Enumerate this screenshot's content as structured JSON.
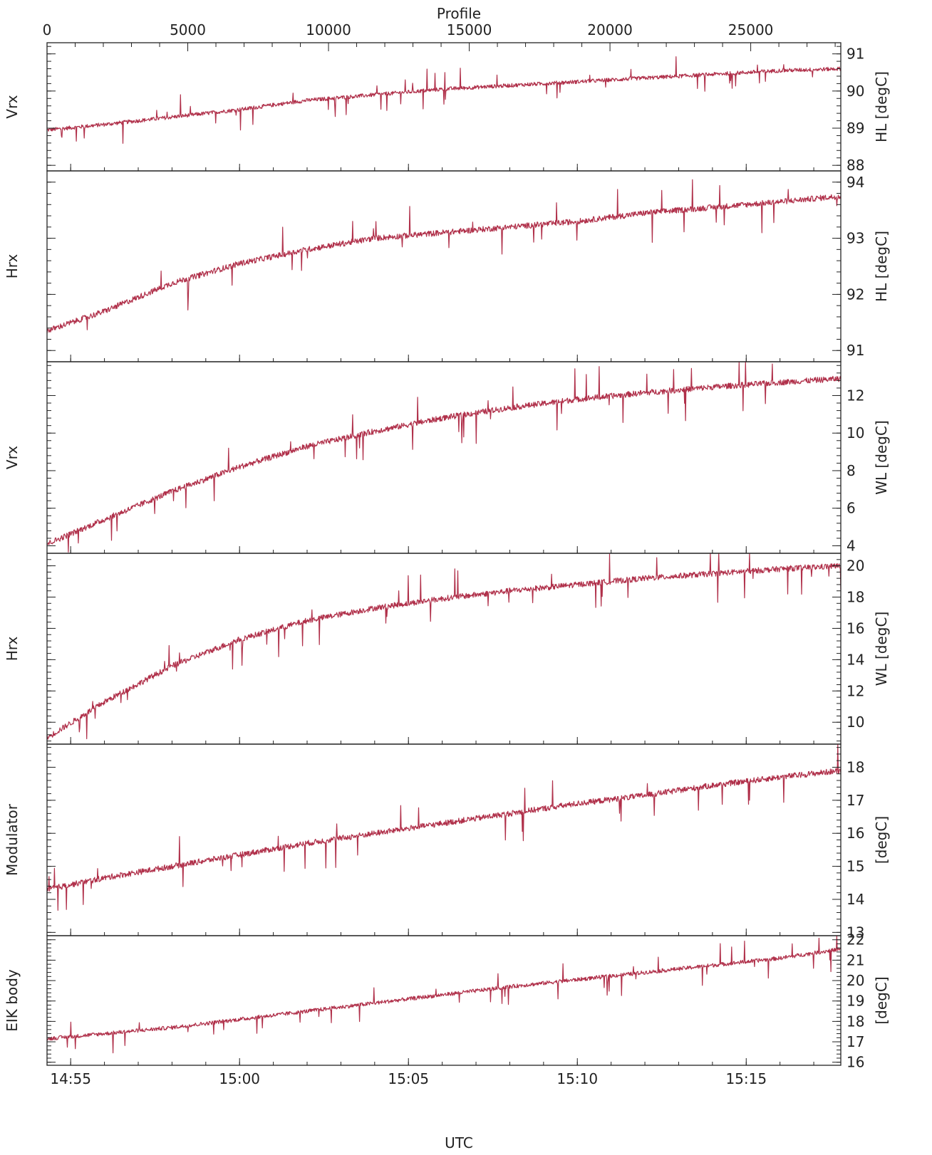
{
  "chart_data": {
    "type": "line",
    "colors": {
      "series": "#b0304a",
      "axes": "#222222"
    },
    "top_axis": {
      "label": "Profile",
      "ticks": [
        0,
        5000,
        10000,
        15000,
        20000,
        25000
      ],
      "range": [
        0,
        28200
      ]
    },
    "bottom_axis": {
      "label": "UTC",
      "tick_labels": [
        "14:55",
        "15:00",
        "15:05",
        "15:10",
        "15:15"
      ],
      "tick_minutes": [
        895,
        900,
        905,
        910,
        915
      ],
      "range_minutes": [
        894.3,
        917.8
      ]
    },
    "panels": [
      {
        "left_label": "Vrx",
        "right_label": "HL  [degC]",
        "ylim": [
          87.85,
          91.3
        ],
        "yticks": [
          88,
          89,
          90,
          91
        ],
        "series": {
          "x_minutes": [
            894.3,
            896,
            898,
            900,
            902,
            904,
            906,
            908,
            910,
            912,
            914,
            916,
            917.8
          ],
          "values": [
            88.95,
            89.1,
            89.3,
            89.5,
            89.75,
            89.9,
            90.05,
            90.15,
            90.25,
            90.35,
            90.45,
            90.55,
            90.6
          ]
        }
      },
      {
        "left_label": "Hrx",
        "right_label": "HL  [degC]",
        "ylim": [
          90.8,
          94.2
        ],
        "yticks": [
          91,
          92,
          93,
          94
        ],
        "series": {
          "x_minutes": [
            894.3,
            896,
            898,
            900,
            902,
            904,
            906,
            908,
            910,
            912,
            914,
            916,
            917.8
          ],
          "values": [
            91.35,
            91.7,
            92.2,
            92.55,
            92.8,
            93.0,
            93.1,
            93.2,
            93.3,
            93.45,
            93.55,
            93.65,
            93.75
          ]
        }
      },
      {
        "left_label": "Vrx",
        "right_label": "WL  [degC]",
        "ylim": [
          3.6,
          13.8
        ],
        "yticks": [
          4,
          6,
          8,
          10,
          12
        ],
        "series": {
          "x_minutes": [
            894.3,
            896,
            898,
            900,
            902,
            904,
            906,
            908,
            910,
            912,
            914,
            916,
            917.8
          ],
          "values": [
            4.1,
            5.4,
            6.9,
            8.2,
            9.3,
            10.1,
            10.8,
            11.35,
            11.8,
            12.15,
            12.45,
            12.7,
            12.9
          ]
        }
      },
      {
        "left_label": "Hrx",
        "right_label": "WL  [degC]",
        "ylim": [
          8.6,
          20.8
        ],
        "yticks": [
          10,
          12,
          14,
          16,
          18,
          20
        ],
        "series": {
          "x_minutes": [
            894.3,
            896,
            898,
            900,
            902,
            904,
            906,
            908,
            910,
            912,
            914,
            916,
            917.8
          ],
          "values": [
            9.0,
            11.3,
            13.6,
            15.3,
            16.5,
            17.3,
            17.9,
            18.4,
            18.8,
            19.2,
            19.5,
            19.8,
            20.0
          ]
        }
      },
      {
        "left_label": "Modulator",
        "right_label": "[degC]",
        "ylim": [
          12.9,
          18.7
        ],
        "yticks": [
          13,
          14,
          15,
          16,
          17,
          18
        ],
        "series": {
          "x_minutes": [
            894.3,
            896,
            898,
            900,
            902,
            904,
            906,
            908,
            910,
            912,
            914,
            916,
            917.8
          ],
          "values": [
            14.3,
            14.65,
            15.0,
            15.35,
            15.7,
            16.0,
            16.3,
            16.6,
            16.9,
            17.15,
            17.45,
            17.7,
            17.9
          ]
        }
      },
      {
        "left_label": "EIK  body",
        "right_label": "[degC]",
        "ylim": [
          15.85,
          22.2
        ],
        "yticks": [
          16,
          17,
          18,
          19,
          20,
          21,
          22
        ],
        "series": {
          "x_minutes": [
            894.3,
            896,
            898,
            900,
            902,
            904,
            906,
            908,
            910,
            912,
            914,
            916,
            917.8
          ],
          "values": [
            17.15,
            17.4,
            17.7,
            18.1,
            18.5,
            18.9,
            19.3,
            19.7,
            20.05,
            20.4,
            20.75,
            21.1,
            21.55
          ]
        }
      }
    ]
  }
}
